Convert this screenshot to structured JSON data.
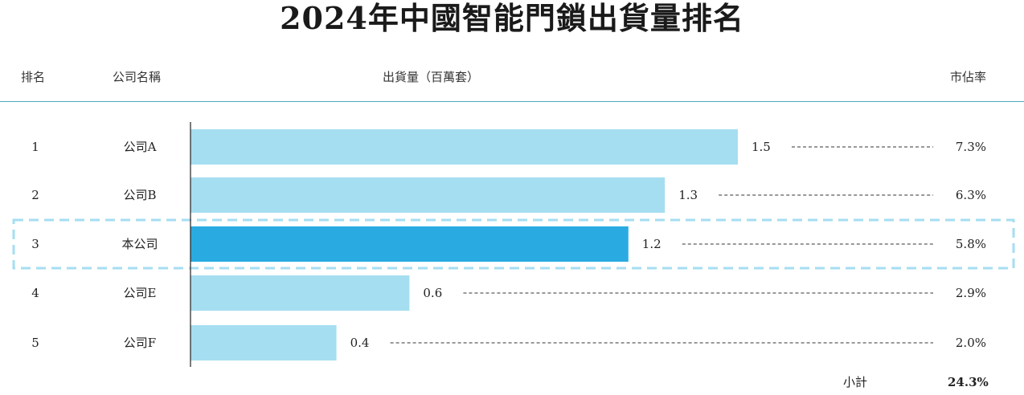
{
  "title": "2024年中國智能門鎖出貨量排名",
  "headers": {
    "rank": "排名",
    "company": "公司名稱",
    "shipment": "出貨量（百萬套）",
    "share": "市佔率"
  },
  "colors": {
    "bar": "#a6def1",
    "bar_highlight": "#29abe2",
    "highlight_box": "#a6def1",
    "rule": "#4aa9b9"
  },
  "chart_data": {
    "type": "bar",
    "orientation": "horizontal",
    "categories": [
      "公司A",
      "公司B",
      "本公司",
      "公司E",
      "公司F"
    ],
    "ranks": [
      "1",
      "2",
      "3",
      "4",
      "5"
    ],
    "values": [
      1.5,
      1.3,
      1.2,
      0.6,
      0.4
    ],
    "value_labels": [
      "1.5",
      "1.3",
      "1.2",
      "0.6",
      "0.4"
    ],
    "market_share": [
      "7.3%",
      "6.3%",
      "5.8%",
      "2.9%",
      "2.0%"
    ],
    "highlighted_category": "本公司",
    "xlim": [
      0,
      1.5
    ],
    "grid": false,
    "legend": "none"
  },
  "subtotal": {
    "label": "小計",
    "value": "24.3%"
  }
}
